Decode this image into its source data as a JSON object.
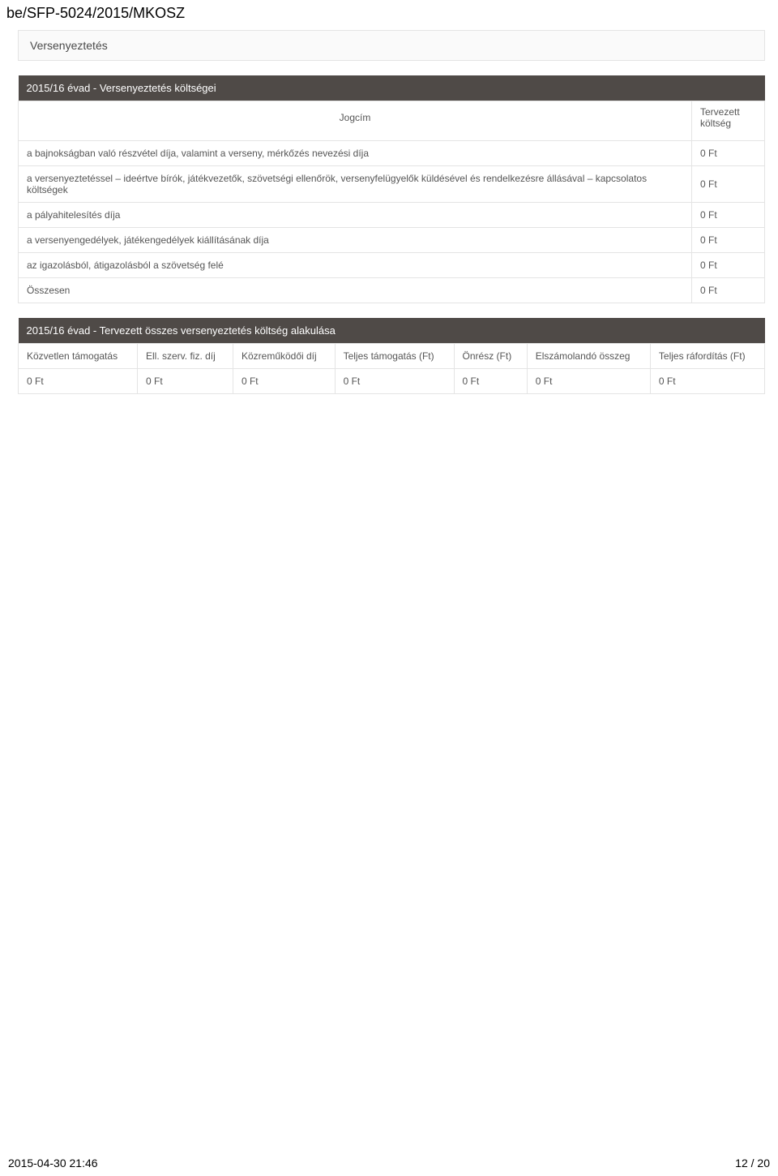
{
  "doc_id": "be/SFP-5024/2015/MKOSZ",
  "section_title": "Versenyeztetés",
  "table1": {
    "title": "2015/16 évad - Versenyeztetés költségei",
    "col_jogcim": "Jogcím",
    "col_tervezett": "Tervezett költség",
    "rows": [
      {
        "label": "a bajnokságban való részvétel díja, valamint a verseny, mérkőzés nevezési díja",
        "value": "0 Ft"
      },
      {
        "label": "a versenyeztetéssel – ideértve bírók, játékvezetők, szövetségi ellenőrök, versenyfelügyelők küldésével és rendelkezésre állásával – kapcsolatos költségek",
        "value": "0 Ft"
      },
      {
        "label": "a pályahitelesítés díja",
        "value": "0 Ft"
      },
      {
        "label": "a versenyengedélyek, játékengedélyek kiállításának díja",
        "value": "0 Ft"
      },
      {
        "label": "az igazolásból, átigazolásból a szövetség felé",
        "value": "0 Ft"
      },
      {
        "label": "Összesen",
        "value": "0 Ft"
      }
    ]
  },
  "table2": {
    "title": "2015/16 évad - Tervezett összes versenyeztetés költség alakulása",
    "headers": [
      "Közvetlen támogatás",
      "Ell. szerv. fiz. díj",
      "Közreműködői díj",
      "Teljes támogatás (Ft)",
      "Önrész (Ft)",
      "Elszámolandó összeg",
      "Teljes ráfordítás (Ft)"
    ],
    "row": [
      "0 Ft",
      "0 Ft",
      "0 Ft",
      "0 Ft",
      "0 Ft",
      "0 Ft",
      "0 Ft"
    ]
  },
  "footer": {
    "timestamp": "2015-04-30 21:46",
    "page": "12 / 20"
  },
  "style": {
    "dark_bg": "#4f4a47",
    "dark_fg": "#ffffff",
    "border_color": "#e4e4e4",
    "text_color": "#555555",
    "section_bg": "#fafafa"
  }
}
